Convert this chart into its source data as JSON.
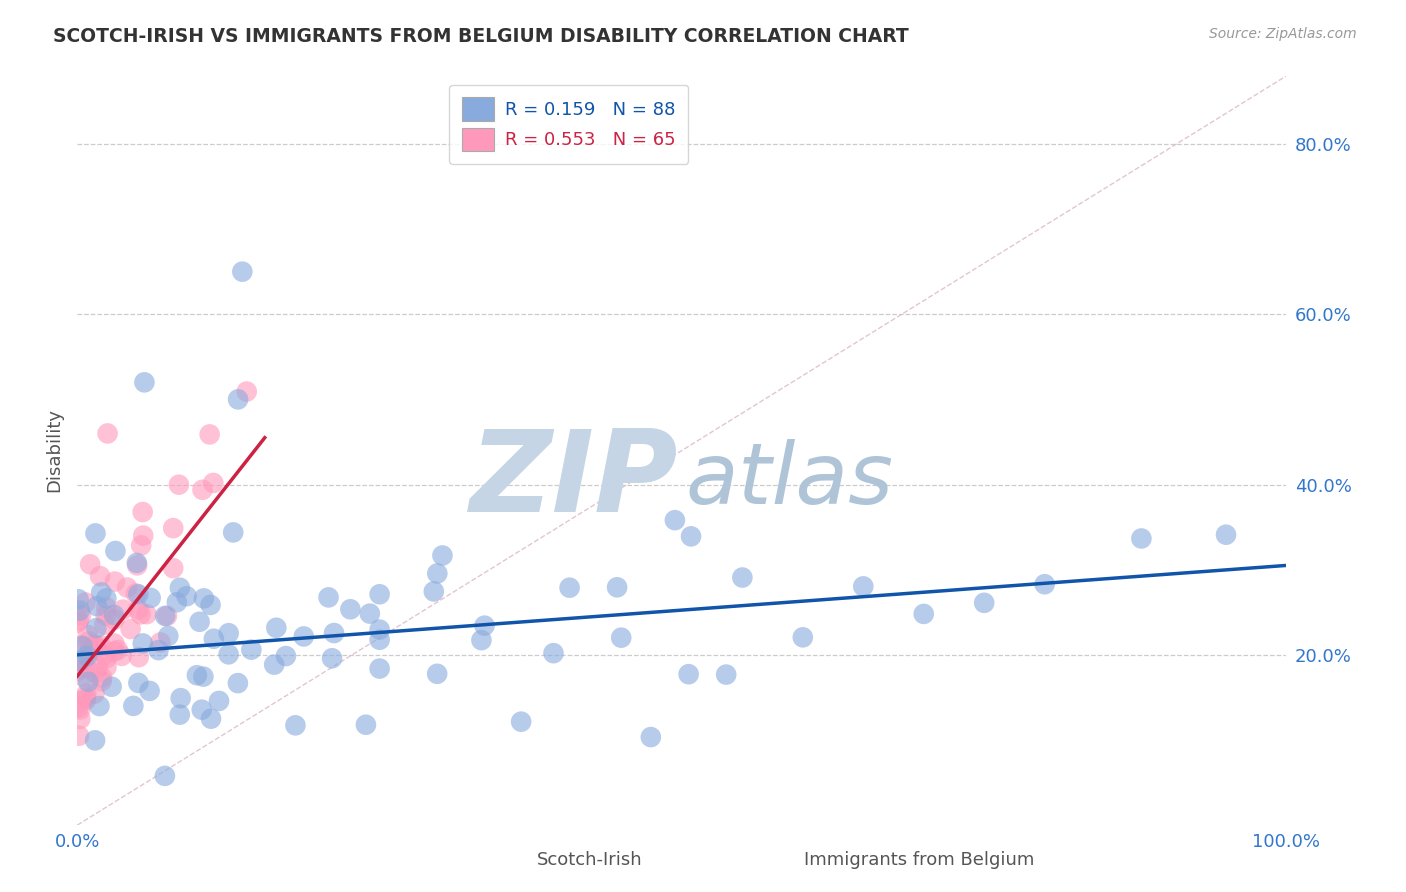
{
  "title": "SCOTCH-IRISH VS IMMIGRANTS FROM BELGIUM DISABILITY CORRELATION CHART",
  "source": "Source: ZipAtlas.com",
  "ylabel": "Disability",
  "xmin": 0.0,
  "xmax": 1.0,
  "ymin": 0.0,
  "ymax": 0.88,
  "yticks": [
    0.2,
    0.4,
    0.6,
    0.8
  ],
  "xtick_labels": [
    "0.0%",
    "100.0%"
  ],
  "ytick_labels": [
    "20.0%",
    "40.0%",
    "60.0%",
    "80.0%"
  ],
  "blue_R": 0.159,
  "blue_N": 88,
  "pink_R": 0.553,
  "pink_N": 65,
  "blue_label": "Scotch-Irish",
  "pink_label": "Immigrants from Belgium",
  "blue_color": "#88AADD",
  "pink_color": "#FF99BB",
  "blue_line_color": "#1155AA",
  "pink_line_color": "#CC2244",
  "diag_color": "#DDBBCC",
  "background_color": "#FFFFFF",
  "grid_color": "#CCCCCC",
  "watermark_zip_color": "#C5D5E5",
  "watermark_atlas_color": "#B0C4D8",
  "title_color": "#333333",
  "axis_label_color": "#555555",
  "tick_color": "#3377CC",
  "legend_label1": "R = 0.159   N = 88",
  "legend_label2": "R = 0.553   N = 65",
  "blue_reg": [
    0.0,
    0.2,
    1.0,
    0.305
  ],
  "pink_reg": [
    0.0,
    0.175,
    0.155,
    0.455
  ],
  "blue_seed": 42,
  "pink_seed": 99
}
